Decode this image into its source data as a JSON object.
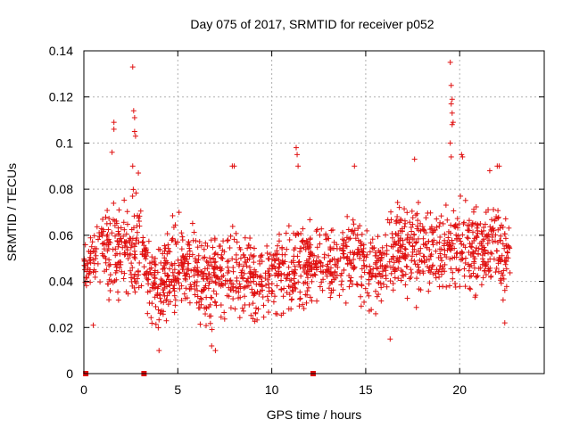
{
  "chart_data": {
    "type": "scatter",
    "title": "Day 075 of 2017, SRMTID for receiver p052",
    "xlabel": "GPS time / hours",
    "ylabel": "SRMTID / TECUs",
    "xlim": [
      0,
      24.5
    ],
    "ylim": [
      0,
      0.14
    ],
    "xticks": [
      0,
      5,
      10,
      15,
      20
    ],
    "xtick_labels": [
      "0",
      "5",
      "10",
      "15",
      "20"
    ],
    "yticks": [
      0,
      0.02,
      0.04,
      0.06,
      0.08,
      0.1,
      0.12,
      0.14
    ],
    "ytick_labels": [
      "0",
      "0.02",
      "0.04",
      "0.06",
      "0.08",
      "0.1",
      "0.12",
      "0.14"
    ],
    "grid": true,
    "marker": "plus",
    "marker_color": "#e01010",
    "zero_markers": [
      0.1,
      3.2,
      12.2
    ],
    "envelope": {
      "x": [
        0.0,
        0.5,
        1.0,
        1.5,
        2.0,
        2.5,
        3.0,
        3.5,
        4.0,
        4.5,
        5.0,
        5.5,
        6.0,
        6.5,
        7.0,
        7.5,
        8.0,
        8.5,
        9.0,
        9.5,
        10.0,
        10.5,
        11.0,
        11.5,
        12.0,
        12.5,
        13.0,
        13.5,
        14.0,
        14.5,
        15.0,
        15.5,
        16.0,
        16.5,
        17.0,
        17.5,
        18.0,
        18.5,
        19.0,
        19.5,
        20.0,
        20.5,
        21.0,
        21.5,
        22.0,
        22.5
      ],
      "low": [
        0.03,
        0.028,
        0.025,
        0.022,
        0.025,
        0.028,
        0.022,
        0.02,
        0.015,
        0.018,
        0.02,
        0.018,
        0.02,
        0.016,
        0.015,
        0.018,
        0.02,
        0.02,
        0.018,
        0.02,
        0.02,
        0.022,
        0.02,
        0.022,
        0.024,
        0.025,
        0.026,
        0.026,
        0.028,
        0.026,
        0.024,
        0.022,
        0.026,
        0.028,
        0.03,
        0.028,
        0.028,
        0.03,
        0.028,
        0.03,
        0.028,
        0.03,
        0.028,
        0.03,
        0.028,
        0.03
      ],
      "high": [
        0.06,
        0.072,
        0.082,
        0.085,
        0.08,
        0.085,
        0.08,
        0.06,
        0.062,
        0.068,
        0.075,
        0.07,
        0.065,
        0.068,
        0.07,
        0.066,
        0.07,
        0.068,
        0.064,
        0.062,
        0.066,
        0.066,
        0.07,
        0.068,
        0.068,
        0.07,
        0.072,
        0.072,
        0.076,
        0.074,
        0.072,
        0.066,
        0.07,
        0.078,
        0.08,
        0.078,
        0.076,
        0.078,
        0.08,
        0.082,
        0.085,
        0.08,
        0.078,
        0.078,
        0.076,
        0.07
      ]
    },
    "outliers": [
      {
        "x": 2.6,
        "y": 0.133
      },
      {
        "x": 2.65,
        "y": 0.114
      },
      {
        "x": 2.7,
        "y": 0.111
      },
      {
        "x": 2.7,
        "y": 0.105
      },
      {
        "x": 2.75,
        "y": 0.103
      },
      {
        "x": 1.6,
        "y": 0.109
      },
      {
        "x": 1.6,
        "y": 0.106
      },
      {
        "x": 1.5,
        "y": 0.096
      },
      {
        "x": 2.6,
        "y": 0.09
      },
      {
        "x": 2.9,
        "y": 0.087
      },
      {
        "x": 7.9,
        "y": 0.09
      },
      {
        "x": 8.0,
        "y": 0.09
      },
      {
        "x": 11.3,
        "y": 0.098
      },
      {
        "x": 11.35,
        "y": 0.095
      },
      {
        "x": 11.4,
        "y": 0.09
      },
      {
        "x": 14.4,
        "y": 0.09
      },
      {
        "x": 17.6,
        "y": 0.093
      },
      {
        "x": 19.5,
        "y": 0.135
      },
      {
        "x": 19.55,
        "y": 0.125
      },
      {
        "x": 19.6,
        "y": 0.119
      },
      {
        "x": 19.55,
        "y": 0.117
      },
      {
        "x": 19.6,
        "y": 0.113
      },
      {
        "x": 19.65,
        "y": 0.109
      },
      {
        "x": 19.6,
        "y": 0.108
      },
      {
        "x": 19.5,
        "y": 0.1
      },
      {
        "x": 19.55,
        "y": 0.094
      },
      {
        "x": 20.1,
        "y": 0.095
      },
      {
        "x": 20.15,
        "y": 0.094
      },
      {
        "x": 22.0,
        "y": 0.09
      },
      {
        "x": 22.1,
        "y": 0.09
      },
      {
        "x": 21.6,
        "y": 0.088
      },
      {
        "x": 0.5,
        "y": 0.021
      },
      {
        "x": 4.0,
        "y": 0.01
      },
      {
        "x": 6.8,
        "y": 0.012
      },
      {
        "x": 7.0,
        "y": 0.01
      },
      {
        "x": 16.3,
        "y": 0.015
      },
      {
        "x": 22.4,
        "y": 0.022
      }
    ],
    "sample_count": 1700,
    "x_end": 22.7
  }
}
